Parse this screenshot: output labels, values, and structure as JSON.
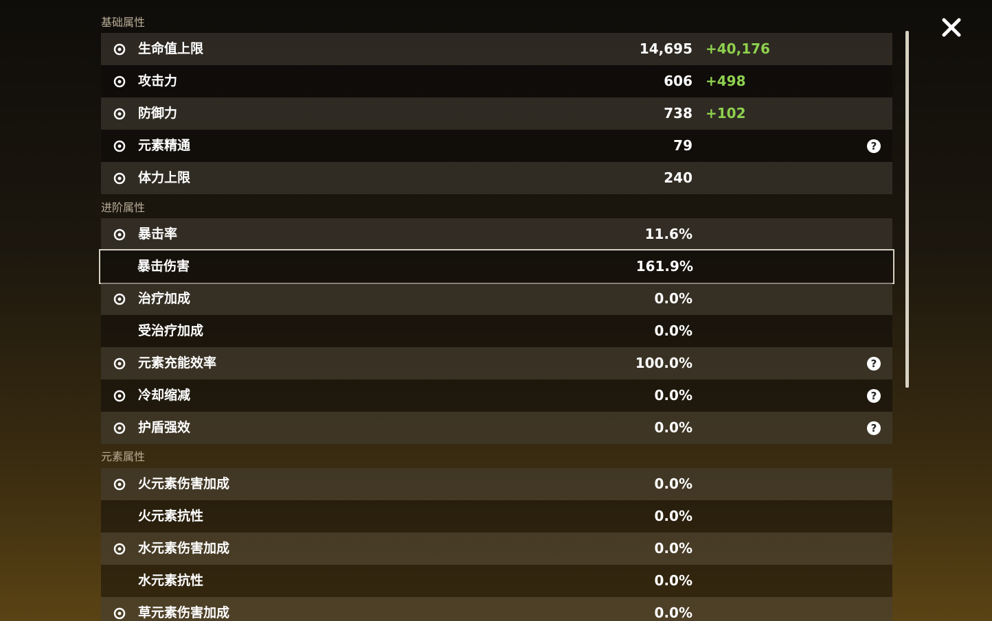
{
  "sections": [
    {
      "title": "基础属性",
      "rows": [
        {
          "label": "生命值上限",
          "value": "14,695",
          "bonus": "+40,176"
        },
        {
          "label": "攻击力",
          "value": "606",
          "bonus": "+498"
        },
        {
          "label": "防御力",
          "value": "738",
          "bonus": "+102"
        },
        {
          "label": "元素精通",
          "value": "79"
        },
        {
          "label": "体力上限",
          "value": "240"
        }
      ]
    },
    {
      "title": "进阶属性",
      "rows": [
        {
          "label": "暴击率",
          "value": "11.6%"
        },
        {
          "label": "暴击伤害",
          "value": "161.9%"
        },
        {
          "label": "治疗加成",
          "value": "0.0%"
        },
        {
          "label": "受治疗加成",
          "value": "0.0%"
        },
        {
          "label": "元素充能效率",
          "value": "100.0%"
        },
        {
          "label": "冷却缩减",
          "value": "0.0%"
        },
        {
          "label": "护盾强效",
          "value": "0.0%"
        }
      ]
    },
    {
      "title": "元素属性",
      "rows": [
        {
          "label": "火元素伤害加成",
          "value": "0.0%"
        },
        {
          "label": "火元素抗性",
          "value": "0.0%"
        },
        {
          "label": "水元素伤害加成",
          "value": "0.0%"
        },
        {
          "label": "水元素抗性",
          "value": "0.0%"
        },
        {
          "label": "草元素伤害加成",
          "value": "0.0%"
        }
      ]
    }
  ]
}
